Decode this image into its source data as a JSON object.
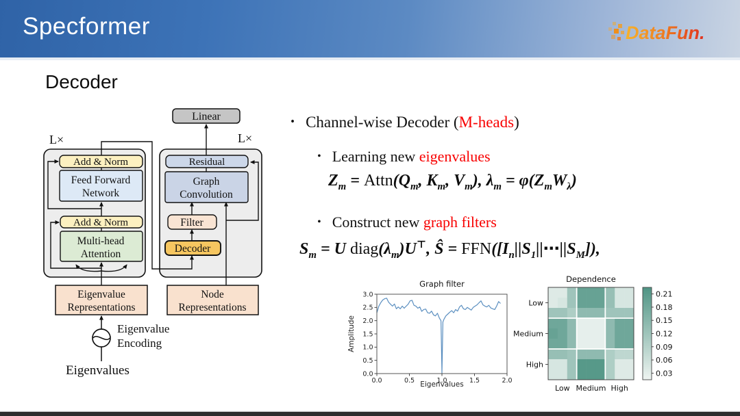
{
  "header": {
    "title": "Specformer",
    "logo_text": "DataFun."
  },
  "slide": {
    "heading": "Decoder"
  },
  "colors": {
    "red": "#f80000",
    "header_left": "#2f63a7",
    "header_right": "#c9d4e3",
    "line_blue": "#5b8fc0",
    "heat_low": "#eef4f1",
    "heat_high": "#4f9484",
    "logo_orange": "#ef8f1b",
    "logo_red": "#e1301f"
  },
  "bullets": {
    "dot": "•",
    "b1": {
      "parts": [
        {
          "t": "Channel-wise Decoder ("
        },
        {
          "t": "M-heads",
          "red": true
        },
        {
          "t": ")"
        }
      ]
    },
    "b2": {
      "parts": [
        {
          "t": "Learning new "
        },
        {
          "t": "eigenvalues",
          "red": true
        }
      ]
    },
    "b3": {
      "parts": [
        {
          "t": "Construct new "
        },
        {
          "t": "graph filters",
          "red": true
        }
      ]
    }
  },
  "equations": {
    "eq1": "Z_{m} = @{Attn}(Q_{m}, K_{m}, V_{m}), λ_{m} = φ(Z_{m}W_{λ})",
    "eq2": "S_{m} = U@{ diag}(λ_{m})U^{⊤},   Ŝ = @{FFN}([I_{n}||S_{1}||⋯||S_{M}]),"
  },
  "diagram": {
    "labels": {
      "lx": "L×",
      "linear": "Linear",
      "add_norm": "Add & Norm",
      "ffn1": "Feed Forward",
      "ffn2": "Network",
      "mha1": "Multi-head",
      "mha2": "Attention",
      "residual": "Residual",
      "gc1": "Graph",
      "gc2": "Convolution",
      "filter": "Filter",
      "decoder": "Decoder",
      "eig1": "Eigenvalue",
      "eig2": "Representations",
      "node1": "Node",
      "node2": "Representations",
      "enc1": "Eigenvalue",
      "enc2": "Encoding",
      "eigenvalues": "Eigenvalues"
    }
  },
  "chart_data": [
    {
      "type": "line",
      "title": "Graph filter",
      "xlabel": "Eigenvalues",
      "ylabel": "Amplitude",
      "xlim": [
        0,
        2
      ],
      "ylim": [
        0,
        3
      ],
      "xticks": [
        0.0,
        0.5,
        1.0,
        1.5,
        2.0
      ],
      "yticks": [
        0.0,
        0.5,
        1.0,
        1.5,
        2.0,
        2.5,
        3.0
      ],
      "line_color": "#5b8fc0",
      "grid": false,
      "x": [
        0,
        0.03,
        0.06,
        0.09,
        0.12,
        0.15,
        0.18,
        0.21,
        0.24,
        0.27,
        0.3,
        0.33,
        0.36,
        0.39,
        0.42,
        0.45,
        0.48,
        0.51,
        0.54,
        0.57,
        0.6,
        0.63,
        0.66,
        0.69,
        0.72,
        0.75,
        0.78,
        0.81,
        0.84,
        0.87,
        0.9,
        0.93,
        0.96,
        0.985,
        1.0,
        1.015,
        1.03,
        1.06,
        1.09,
        1.12,
        1.15,
        1.18,
        1.21,
        1.24,
        1.27,
        1.3,
        1.33,
        1.36,
        1.39,
        1.42,
        1.45,
        1.48,
        1.51,
        1.54,
        1.57,
        1.6,
        1.63,
        1.66,
        1.69,
        1.72,
        1.75,
        1.78,
        1.81,
        1.84,
        1.87,
        1.9
      ],
      "y": [
        2.3,
        2.55,
        2.68,
        2.78,
        2.83,
        2.85,
        2.7,
        2.62,
        2.55,
        2.63,
        2.45,
        2.52,
        2.45,
        2.55,
        2.47,
        2.55,
        2.62,
        2.75,
        2.77,
        2.58,
        2.55,
        2.47,
        2.52,
        2.35,
        2.42,
        2.44,
        2.3,
        2.28,
        2.36,
        2.22,
        2.18,
        2.28,
        2.1,
        2.0,
        0.02,
        1.95,
        2.05,
        2.18,
        2.25,
        2.32,
        2.38,
        2.3,
        2.42,
        2.36,
        2.52,
        2.58,
        2.45,
        2.42,
        2.5,
        2.45,
        2.4,
        2.5,
        2.55,
        2.6,
        2.68,
        2.75,
        2.6,
        2.55,
        2.52,
        2.58,
        2.48,
        2.45,
        2.42,
        2.55,
        2.72,
        2.65
      ]
    },
    {
      "type": "heatmap",
      "title": "Dependence",
      "row_labels": [
        "Low",
        "Medium",
        "High"
      ],
      "col_labels": [
        "Low",
        "Medium",
        "High"
      ],
      "colorbar_ticks": [
        0.21,
        0.18,
        0.15,
        0.12,
        0.09,
        0.06,
        0.03
      ],
      "colorbar_range": [
        0.015,
        0.225
      ],
      "vmin": 0.02,
      "vmax": 0.22,
      "color_low": "#eef4f1",
      "color_high": "#4f9484",
      "values": [
        [
          0.04,
          0.04,
          0.12,
          0.19,
          0.19,
          0.19,
          0.13,
          0.05,
          0.05
        ],
        [
          0.04,
          0.05,
          0.12,
          0.19,
          0.19,
          0.19,
          0.13,
          0.05,
          0.05
        ],
        [
          0.12,
          0.12,
          0.1,
          0.14,
          0.14,
          0.14,
          0.12,
          0.12,
          0.12
        ],
        [
          0.18,
          0.18,
          0.14,
          0.03,
          0.03,
          0.03,
          0.14,
          0.18,
          0.18
        ],
        [
          0.19,
          0.18,
          0.14,
          0.03,
          0.03,
          0.03,
          0.14,
          0.18,
          0.18
        ],
        [
          0.18,
          0.18,
          0.14,
          0.03,
          0.03,
          0.03,
          0.14,
          0.18,
          0.18
        ],
        [
          0.13,
          0.13,
          0.12,
          0.14,
          0.14,
          0.14,
          0.1,
          0.08,
          0.08
        ],
        [
          0.05,
          0.05,
          0.12,
          0.21,
          0.21,
          0.21,
          0.1,
          0.04,
          0.04
        ],
        [
          0.05,
          0.05,
          0.12,
          0.21,
          0.21,
          0.21,
          0.1,
          0.04,
          0.04
        ]
      ]
    }
  ]
}
